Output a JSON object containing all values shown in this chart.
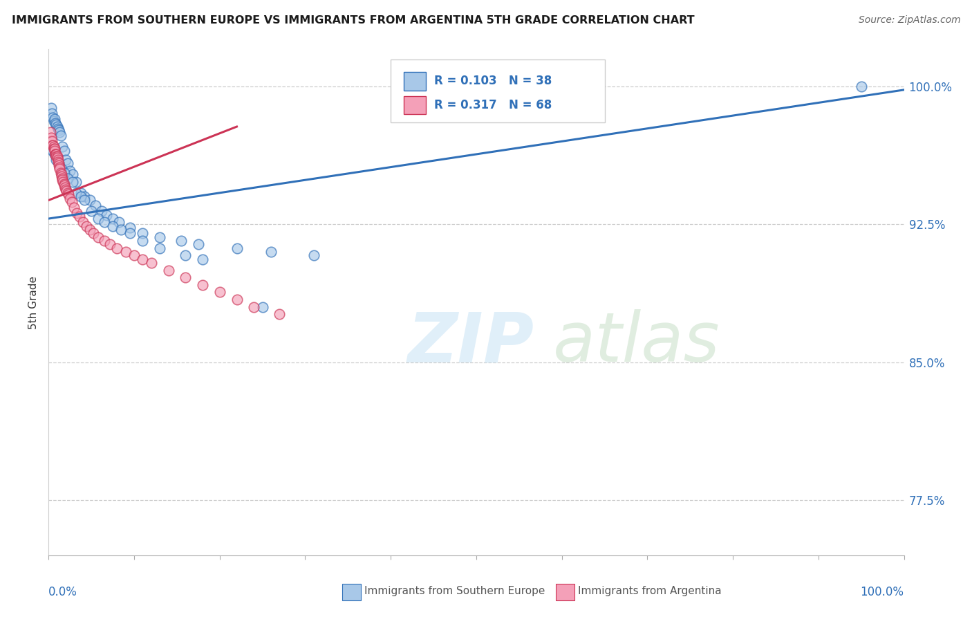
{
  "title": "IMMIGRANTS FROM SOUTHERN EUROPE VS IMMIGRANTS FROM ARGENTINA 5TH GRADE CORRELATION CHART",
  "source": "Source: ZipAtlas.com",
  "ylabel": "5th Grade",
  "ytick_labels": [
    "77.5%",
    "85.0%",
    "92.5%",
    "100.0%"
  ],
  "ytick_values": [
    0.775,
    0.85,
    0.925,
    1.0
  ],
  "xlim": [
    0.0,
    1.0
  ],
  "ylim": [
    0.745,
    1.02
  ],
  "legend_r1": "R = 0.103",
  "legend_n1": "N = 38",
  "legend_r2": "R = 0.317",
  "legend_n2": "N = 68",
  "color_blue": "#a8c8e8",
  "color_pink": "#f4a0b8",
  "color_trendline_blue": "#3070b8",
  "color_trendline_pink": "#cc3355",
  "blue_trend_x0": 0.0,
  "blue_trend_y0": 0.928,
  "blue_trend_x1": 1.0,
  "blue_trend_y1": 0.998,
  "pink_trend_x0": 0.0,
  "pink_trend_y0": 0.938,
  "pink_trend_x1": 0.22,
  "pink_trend_y1": 0.978,
  "blue_x": [
    0.003,
    0.004,
    0.005,
    0.006,
    0.007,
    0.008,
    0.009,
    0.01,
    0.011,
    0.012,
    0.013,
    0.014,
    0.016,
    0.018,
    0.02,
    0.022,
    0.025,
    0.028,
    0.032,
    0.038,
    0.042,
    0.048,
    0.055,
    0.062,
    0.068,
    0.075,
    0.082,
    0.095,
    0.11,
    0.13,
    0.155,
    0.175,
    0.22,
    0.26,
    0.31,
    0.95
  ],
  "blue_y": [
    0.988,
    0.985,
    0.983,
    0.981,
    0.982,
    0.98,
    0.979,
    0.978,
    0.977,
    0.976,
    0.975,
    0.973,
    0.967,
    0.965,
    0.96,
    0.958,
    0.954,
    0.952,
    0.948,
    0.942,
    0.94,
    0.938,
    0.935,
    0.932,
    0.93,
    0.928,
    0.926,
    0.923,
    0.92,
    0.918,
    0.916,
    0.914,
    0.912,
    0.91,
    0.908,
    1.0
  ],
  "blue_x2": [
    0.005,
    0.007,
    0.009,
    0.012,
    0.015,
    0.018,
    0.022,
    0.028,
    0.032,
    0.038,
    0.042,
    0.05,
    0.058,
    0.065,
    0.075,
    0.085,
    0.095,
    0.11,
    0.13,
    0.16,
    0.18,
    0.25
  ],
  "blue_y2": [
    0.965,
    0.963,
    0.96,
    0.958,
    0.955,
    0.953,
    0.95,
    0.948,
    0.942,
    0.94,
    0.938,
    0.932,
    0.928,
    0.926,
    0.924,
    0.922,
    0.92,
    0.916,
    0.912,
    0.908,
    0.906,
    0.88
  ],
  "pink_x": [
    0.002,
    0.003,
    0.004,
    0.005,
    0.005,
    0.006,
    0.006,
    0.007,
    0.007,
    0.008,
    0.008,
    0.009,
    0.009,
    0.01,
    0.01,
    0.011,
    0.011,
    0.012,
    0.012,
    0.013,
    0.013,
    0.014,
    0.015,
    0.015,
    0.016,
    0.016,
    0.017,
    0.018,
    0.018,
    0.019,
    0.02,
    0.021,
    0.022,
    0.023,
    0.025,
    0.027,
    0.03,
    0.033,
    0.036,
    0.04,
    0.044,
    0.048,
    0.052,
    0.058,
    0.065,
    0.072,
    0.08,
    0.09,
    0.1,
    0.11,
    0.12,
    0.14,
    0.16,
    0.18,
    0.2,
    0.22,
    0.24,
    0.27
  ],
  "pink_y": [
    0.975,
    0.972,
    0.97,
    0.968,
    0.968,
    0.967,
    0.966,
    0.966,
    0.965,
    0.963,
    0.963,
    0.963,
    0.962,
    0.962,
    0.961,
    0.96,
    0.959,
    0.958,
    0.957,
    0.956,
    0.955,
    0.953,
    0.952,
    0.951,
    0.95,
    0.949,
    0.948,
    0.947,
    0.946,
    0.945,
    0.944,
    0.943,
    0.942,
    0.941,
    0.939,
    0.937,
    0.934,
    0.931,
    0.929,
    0.926,
    0.924,
    0.922,
    0.92,
    0.918,
    0.916,
    0.914,
    0.912,
    0.91,
    0.908,
    0.906,
    0.904,
    0.9,
    0.896,
    0.892,
    0.888,
    0.884,
    0.88,
    0.876
  ]
}
